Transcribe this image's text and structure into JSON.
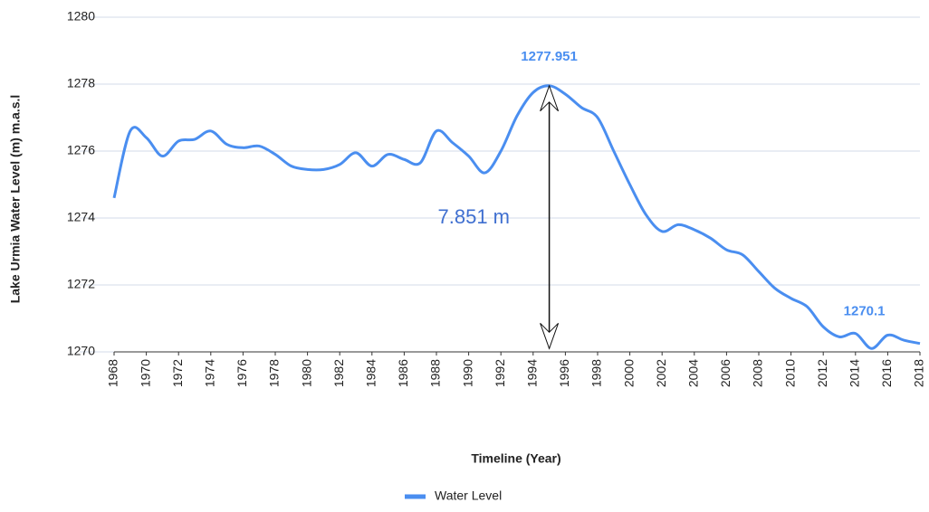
{
  "chart_data": {
    "type": "line",
    "x_label": "Timeline (Year)",
    "y_label": "Lake Urmia Water Level (m) m.a.s.l",
    "x": [
      1968,
      1969,
      1970,
      1971,
      1972,
      1973,
      1974,
      1975,
      1976,
      1977,
      1978,
      1979,
      1980,
      1981,
      1982,
      1983,
      1984,
      1985,
      1986,
      1987,
      1988,
      1989,
      1990,
      1991,
      1992,
      1993,
      1994,
      1995,
      1996,
      1997,
      1998,
      1999,
      2000,
      2001,
      2002,
      2003,
      2004,
      2005,
      2006,
      2007,
      2008,
      2009,
      2010,
      2011,
      2012,
      2013,
      2014,
      2015,
      2016,
      2017,
      2018
    ],
    "series": [
      {
        "name": "Water Level",
        "color": "#4a8ef0",
        "values": [
          1274.6,
          1276.6,
          1276.4,
          1275.85,
          1276.3,
          1276.35,
          1276.6,
          1276.2,
          1276.1,
          1276.15,
          1275.9,
          1275.55,
          1275.45,
          1275.45,
          1275.6,
          1275.95,
          1275.55,
          1275.9,
          1275.75,
          1275.65,
          1276.6,
          1276.25,
          1275.85,
          1275.35,
          1276.0,
          1277.05,
          1277.75,
          1277.951,
          1277.7,
          1277.3,
          1277.0,
          1276.0,
          1275.0,
          1274.1,
          1273.6,
          1273.8,
          1273.65,
          1273.4,
          1273.05,
          1272.9,
          1272.4,
          1271.9,
          1271.6,
          1271.35,
          1270.75,
          1270.45,
          1270.55,
          1270.1,
          1270.5,
          1270.35,
          1270.25
        ]
      }
    ],
    "xlim": [
      1968,
      2018
    ],
    "xticks": [
      1968,
      1970,
      1972,
      1974,
      1976,
      1978,
      1980,
      1982,
      1984,
      1986,
      1988,
      1990,
      1992,
      1994,
      1996,
      1998,
      2000,
      2002,
      2004,
      2006,
      2008,
      2010,
      2012,
      2014,
      2016,
      2018
    ],
    "ylim": [
      1270,
      1280
    ],
    "yticks": [
      1270,
      1272,
      1274,
      1276,
      1278,
      1280
    ],
    "grid": true,
    "legend": "bottom",
    "annotations": [
      {
        "text": "1277.951",
        "x": 1995,
        "y": 1277.951
      },
      {
        "text": "1270.1",
        "x": 2015,
        "y": 1270.1
      },
      {
        "text": "7.851 m",
        "x": 1993,
        "y": 1274
      }
    ]
  }
}
